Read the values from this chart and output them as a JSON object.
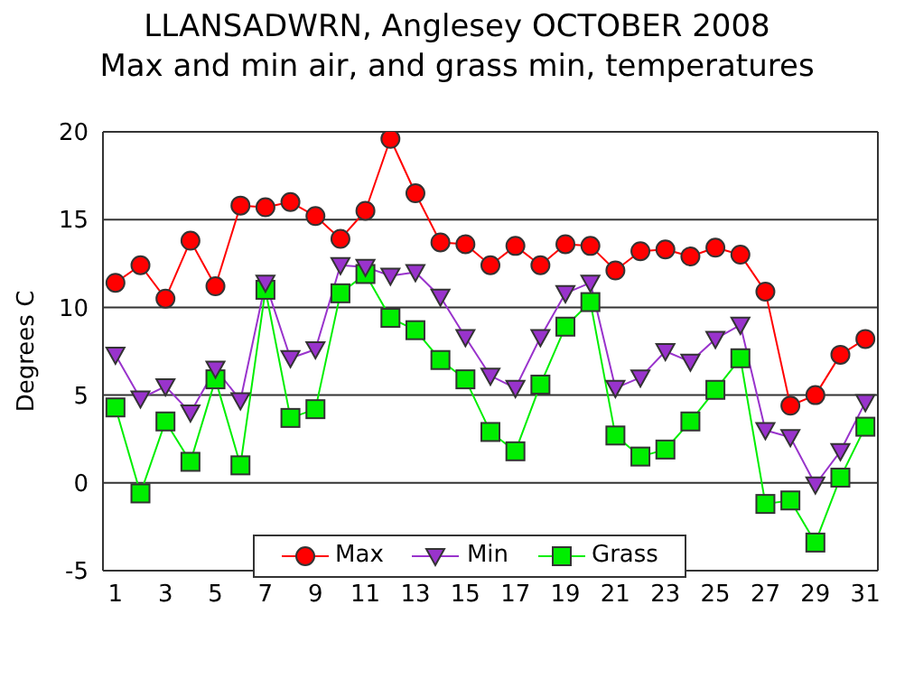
{
  "chart_data": {
    "type": "line",
    "title": "LLANSADWRN, Anglesey OCTOBER 2008",
    "subtitle": "Max and min air, and grass min, temperatures",
    "ylabel": "Degrees C",
    "x": [
      1,
      2,
      3,
      4,
      5,
      6,
      7,
      8,
      9,
      10,
      11,
      12,
      13,
      14,
      15,
      16,
      17,
      18,
      19,
      20,
      21,
      22,
      23,
      24,
      25,
      26,
      27,
      28,
      29,
      30,
      31
    ],
    "xlim": [
      0.5,
      31.5
    ],
    "xticks": [
      1,
      3,
      5,
      7,
      9,
      11,
      13,
      15,
      17,
      19,
      21,
      23,
      25,
      27,
      29,
      31
    ],
    "ylim": [
      -5,
      20
    ],
    "yticks": [
      -5,
      0,
      5,
      10,
      15,
      20
    ],
    "grid": "y",
    "legend": "bottom",
    "series": [
      {
        "name": "Max",
        "color": "#ff0000",
        "marker": "circle",
        "values": [
          11.4,
          12.4,
          10.5,
          13.8,
          11.2,
          15.8,
          15.7,
          16.0,
          15.2,
          13.9,
          15.5,
          19.6,
          16.5,
          13.7,
          13.6,
          12.4,
          13.5,
          12.4,
          13.6,
          13.5,
          12.1,
          13.2,
          13.3,
          12.9,
          13.4,
          13.0,
          10.9,
          4.4,
          5.0,
          7.3,
          8.2
        ]
      },
      {
        "name": "Min",
        "color": "#9933cc",
        "marker": "triangle",
        "values": [
          7.3,
          4.8,
          5.5,
          4.0,
          6.5,
          4.7,
          11.4,
          7.1,
          7.6,
          12.4,
          12.3,
          11.8,
          12.0,
          10.6,
          8.3,
          6.1,
          5.4,
          8.3,
          10.8,
          11.4,
          5.4,
          6.0,
          7.5,
          6.9,
          8.2,
          9.0,
          3.0,
          2.6,
          -0.1,
          1.8,
          4.6
        ]
      },
      {
        "name": "Grass",
        "color": "#00ee00",
        "marker": "square",
        "values": [
          4.3,
          -0.6,
          3.5,
          1.2,
          5.9,
          1.0,
          11.0,
          3.7,
          4.2,
          10.8,
          11.9,
          9.4,
          8.7,
          7.0,
          5.9,
          2.9,
          1.8,
          5.6,
          8.9,
          10.3,
          2.7,
          1.5,
          1.9,
          3.5,
          5.3,
          7.1,
          -1.2,
          -1.0,
          -3.4,
          0.3,
          3.2
        ]
      }
    ]
  }
}
